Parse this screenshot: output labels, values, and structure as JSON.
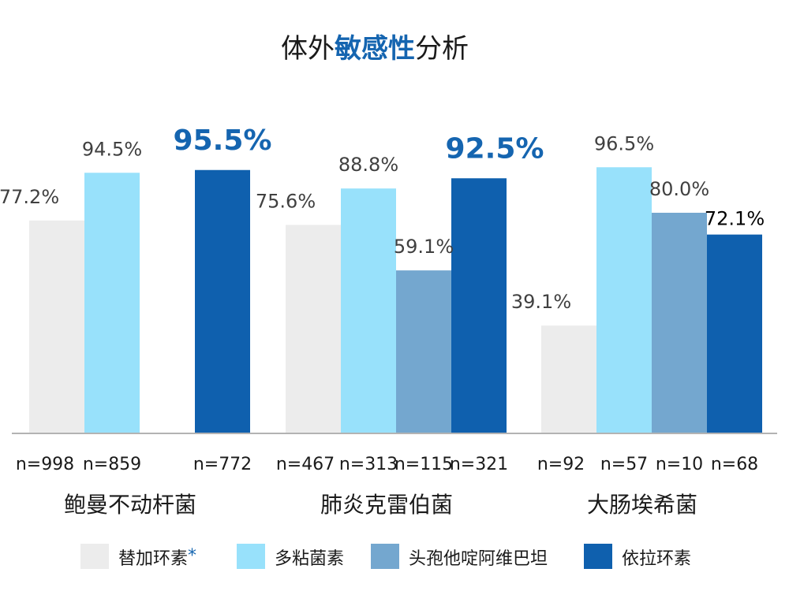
{
  "title": {
    "before": "体外",
    "highlight": "敏感性",
    "after": "分析"
  },
  "chart_data": {
    "type": "bar",
    "categories": [
      "鲍曼不动杆菌",
      "肺炎克雷伯菌",
      "大肠埃希菌"
    ],
    "ylim": [
      0,
      100
    ],
    "grid": false,
    "legend_position": "bottom",
    "series": [
      {
        "name": "替加环素",
        "name_suffix": "*",
        "color": "#ececec",
        "values": [
          77.2,
          75.6,
          39.1
        ],
        "labels": [
          "77.2%",
          "75.6%",
          "39.1%"
        ],
        "n": [
          "n=998",
          "n=467",
          "n=92"
        ]
      },
      {
        "name": "多粘菌素",
        "color": "#98e1fb",
        "values": [
          94.5,
          88.8,
          96.5
        ],
        "labels": [
          "94.5%",
          "88.8%",
          "96.5%"
        ],
        "n": [
          "n=859",
          "n=313",
          "n=57"
        ]
      },
      {
        "name": "头孢他啶阿维巴坦",
        "color": "#74a7cf",
        "values": [
          null,
          59.1,
          80.0
        ],
        "labels": [
          "",
          "59.1%",
          "80.0%"
        ],
        "n": [
          "",
          "n=115",
          "n=10"
        ]
      },
      {
        "name": "依拉环素",
        "color": "#0f60ae",
        "values": [
          95.5,
          92.5,
          72.1
        ],
        "labels": [
          "95.5%",
          "92.5%",
          "72.1%"
        ],
        "n": [
          "n=772",
          "n=321",
          "n=68"
        ]
      }
    ]
  }
}
